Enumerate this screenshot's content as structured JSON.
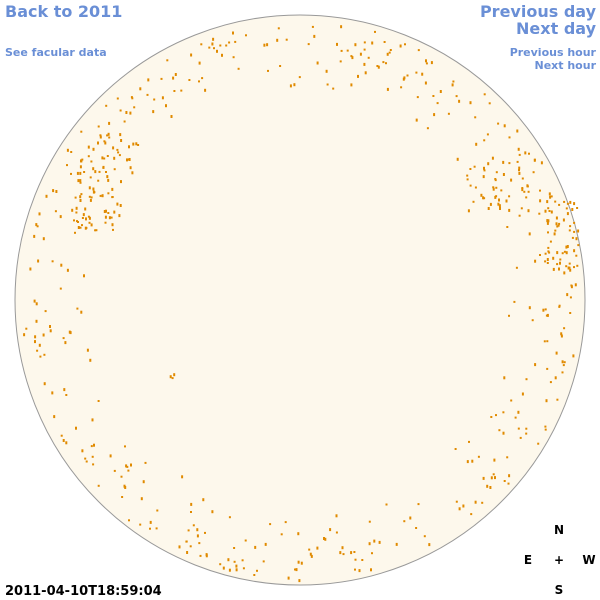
{
  "navigation": {
    "back_year": "Back to 2011",
    "previous_day": "Previous day",
    "next_day": "Next day",
    "facular_data": "See facular data",
    "previous_hour": "Previous hour",
    "next_hour": "Next hour"
  },
  "timestamp": "2011-04-10T18:59:04",
  "compass": {
    "north": "N",
    "east": "E",
    "center": "+",
    "west": "W",
    "south": "S"
  }
}
